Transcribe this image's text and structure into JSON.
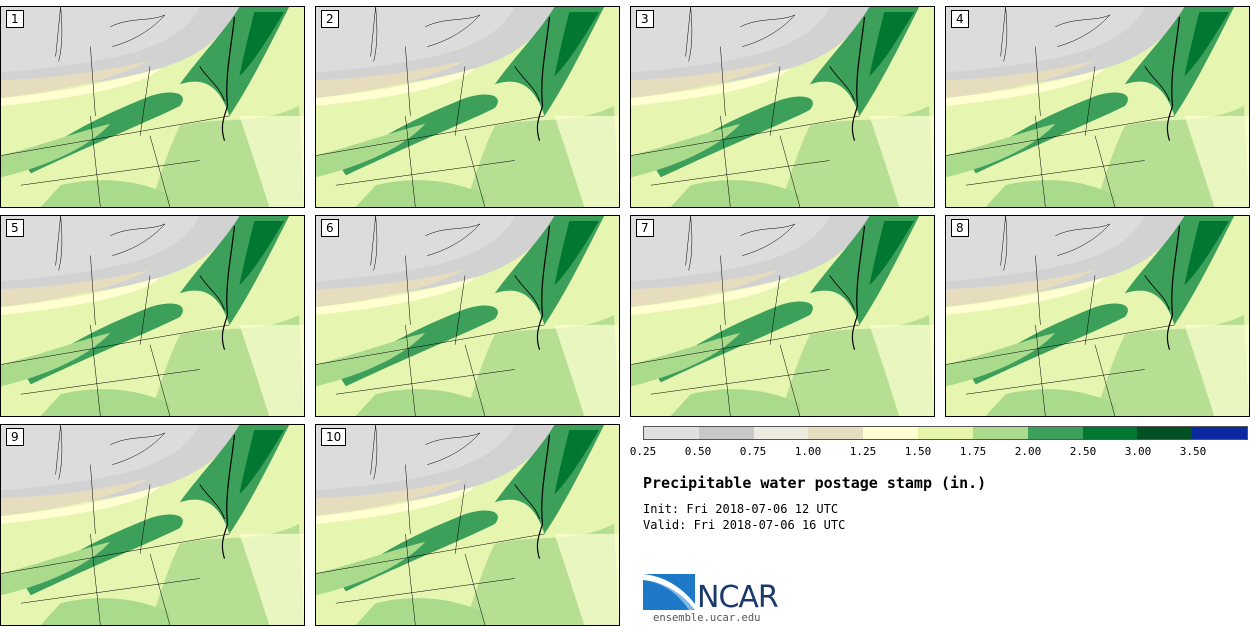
{
  "panels": [
    {
      "label": "1"
    },
    {
      "label": "2"
    },
    {
      "label": "3"
    },
    {
      "label": "4"
    },
    {
      "label": "5"
    },
    {
      "label": "6"
    },
    {
      "label": "7"
    },
    {
      "label": "8"
    },
    {
      "label": "9"
    },
    {
      "label": "10"
    }
  ],
  "colorbar": {
    "colors": [
      "#e0e0e0",
      "#c8c8c8",
      "#ebebe0",
      "#e6dcbe",
      "#ffffd2",
      "#e6f5aa",
      "#aada8c",
      "#3c9f5a",
      "#007832",
      "#005023",
      "#0a28a0"
    ],
    "ticks": [
      "0.25",
      "0.50",
      "0.75",
      "1.00",
      "1.25",
      "1.50",
      "1.75",
      "2.00",
      "2.50",
      "3.00",
      "3.50"
    ]
  },
  "title": "Precipitable water postage stamp (in.)",
  "init": "Init: Fri 2018-07-06 12 UTC",
  "valid": "Valid: Fri 2018-07-06 16 UTC",
  "logo": {
    "name": "NCAR",
    "url": "ensemble.ucar.edu"
  }
}
